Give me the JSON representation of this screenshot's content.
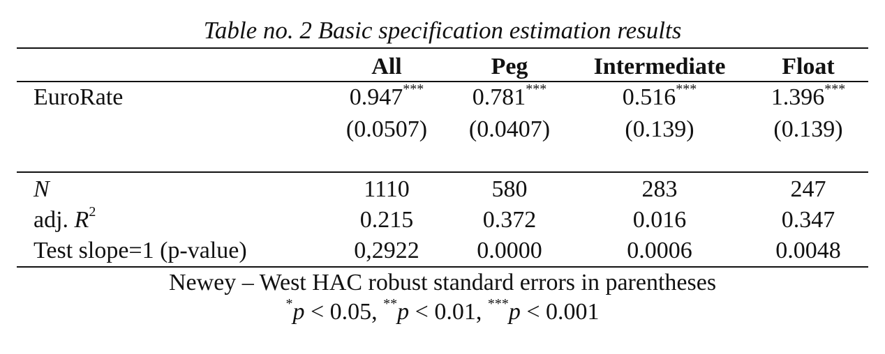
{
  "caption": "Table no. 2 Basic specification estimation results",
  "columns": [
    "All",
    "Peg",
    "Intermediate",
    "Float"
  ],
  "rows": {
    "eurorate": {
      "label": "EuroRate",
      "coef": [
        "0.947",
        "0.781",
        "0.516",
        "1.396"
      ],
      "stars": [
        "***",
        "***",
        "***",
        "***"
      ],
      "se": [
        "(0.0507)",
        "(0.0407)",
        "(0.139)",
        "(0.139)"
      ]
    },
    "n": {
      "label": "N",
      "values": [
        "1110",
        "580",
        "283",
        "247"
      ]
    },
    "adjr2": {
      "label_prefix": "adj. ",
      "label_var": "R",
      "label_sup": "2",
      "values": [
        "0.215",
        "0.372",
        "0.016",
        "0.347"
      ]
    },
    "test": {
      "label": "Test slope=1 (p-value)",
      "values": [
        "0,2922",
        "0.0000",
        "0.0006",
        "0.0048"
      ]
    }
  },
  "notes": {
    "line1": "Newey – West HAC robust standard errors in parentheses",
    "sig": [
      {
        "stars": "*",
        "var": "p",
        "rest": " < 0.05, "
      },
      {
        "stars": "**",
        "var": "p",
        "rest": " < 0.01, "
      },
      {
        "stars": "***",
        "var": "p",
        "rest": " < 0.001"
      }
    ]
  }
}
